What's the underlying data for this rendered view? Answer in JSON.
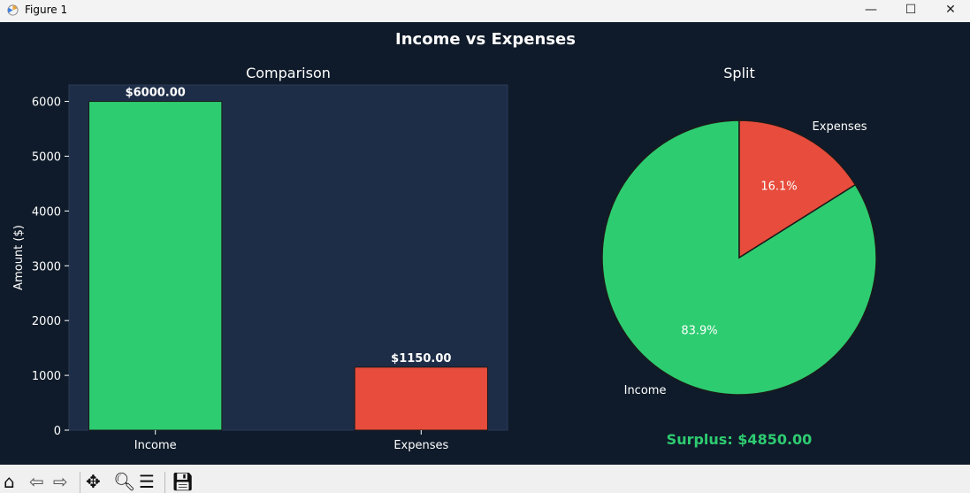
{
  "window": {
    "title": "Figure 1",
    "minimize": "—",
    "maximize": "☐",
    "close": "✕"
  },
  "figure": {
    "suptitle": "Income vs Expenses",
    "background": "#0f1b2a",
    "surplus_text": "Surplus: $4850.00",
    "surplus_color": "#2ecc71"
  },
  "chart_data": [
    {
      "type": "bar",
      "title": "Comparison",
      "xlabel": "",
      "ylabel": "Amount ($)",
      "categories": [
        "Income",
        "Expenses"
      ],
      "values": [
        6000,
        1150
      ],
      "colors": [
        "#2ecc71",
        "#e74c3c"
      ],
      "data_labels": [
        "$6000.00",
        "$1150.00"
      ],
      "ylim": [
        0,
        6300
      ],
      "yticks": [
        0,
        1000,
        2000,
        3000,
        4000,
        5000,
        6000
      ],
      "grid": false,
      "axes_background": "#1e2d47"
    },
    {
      "type": "pie",
      "title": "Split",
      "labels": [
        "Income",
        "Expenses"
      ],
      "values": [
        6000,
        1150
      ],
      "pct_labels": [
        "83.9%",
        "16.1%"
      ],
      "colors": [
        "#2ecc71",
        "#e74c3c"
      ],
      "startangle": 90
    }
  ],
  "toolbar": {
    "items": [
      "home",
      "back",
      "forward",
      "pan",
      "zoom",
      "configure",
      "save"
    ]
  }
}
